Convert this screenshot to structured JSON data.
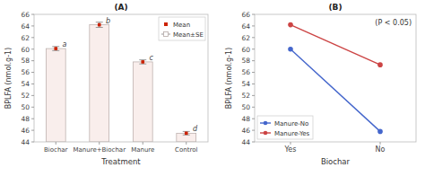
{
  "chart_data": [
    {
      "type": "bar",
      "title": "(A)",
      "x_label": "Treatment",
      "y_label": "BPLFA (nmol.g-1)",
      "categories": [
        "Biochar",
        "Manure+Biochar",
        "Manure",
        "Control"
      ],
      "values": [
        60.1,
        64.2,
        57.8,
        45.5
      ],
      "errors": [
        0.35,
        0.45,
        0.35,
        0.3
      ],
      "color": "#f9eeec",
      "marker_color": "#cc2200",
      "point_labels": [
        "a",
        "b",
        "c",
        "d"
      ],
      "legend_labels": [
        "Mean",
        "Mean±SE"
      ],
      "legend": "upper right",
      "ylim": [
        44,
        66
      ],
      "yticks": [
        44,
        46,
        48,
        50,
        52,
        54,
        56,
        58,
        60,
        62,
        64,
        66
      ]
    },
    {
      "type": "line",
      "title": "(B)",
      "x_label": "Biochar",
      "y_label": "BPLFA (nmol.g-1)",
      "categories": [
        "Yes",
        "No"
      ],
      "series": [
        {
          "name": "Manure-No",
          "color": "#4466cc",
          "marker": "circle",
          "values": [
            60.0,
            45.8
          ]
        },
        {
          "name": "Manure-Yes",
          "color": "#cc4444",
          "marker": "circle",
          "values": [
            64.2,
            57.3
          ]
        }
      ],
      "annotation": "(P < 0.05)",
      "legend": "lower left",
      "ylim": [
        44,
        66
      ],
      "yticks": [
        44,
        46,
        48,
        50,
        52,
        54,
        56,
        58,
        60,
        62,
        64,
        66
      ]
    }
  ]
}
